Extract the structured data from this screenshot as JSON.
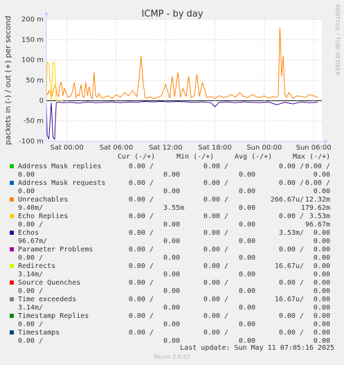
{
  "chart_data": {
    "type": "line",
    "title": "ICMP - by day",
    "ylabel": "packets in (-) / out (+) per second",
    "ylim": [
      -100,
      200
    ],
    "yticks": [
      "200 m",
      "150 m",
      "100 m",
      "50 m",
      "0",
      "-50 m",
      "-100 m"
    ],
    "ytick_values": [
      200,
      150,
      100,
      50,
      0,
      -50,
      -100
    ],
    "xlim": [
      0,
      33.5
    ],
    "xticks": [
      "Sat 00:00",
      "Sat 06:00",
      "Sat 12:00",
      "Sat 18:00",
      "Sun 00:00",
      "Sun 06:00"
    ],
    "xtick_values": [
      2.5,
      8.5,
      14.5,
      20.5,
      26.5,
      32.5
    ],
    "grid": true,
    "series": [
      {
        "name": "Unreachables",
        "color": "#ff8000",
        "x": [
          0,
          0.15,
          0.3,
          0.5,
          0.7,
          0.9,
          1.1,
          1.3,
          1.5,
          1.6,
          1.8,
          2.0,
          2.2,
          2.4,
          2.6,
          2.8,
          3.0,
          3.2,
          3.4,
          3.6,
          3.8,
          4.0,
          4.2,
          4.4,
          4.6,
          4.8,
          5.0,
          5.2,
          5.4,
          5.6,
          5.8,
          6.0,
          6.2,
          6.4,
          6.6,
          6.8,
          7.0,
          7.5,
          8.0,
          8.5,
          9.0,
          9.5,
          10.0,
          10.5,
          11.0,
          11.3,
          11.5,
          11.8,
          12.0,
          12.3,
          12.6,
          13.0,
          13.5,
          14.0,
          14.5,
          15.0,
          15.3,
          15.6,
          16.0,
          16.3,
          16.6,
          17.0,
          17.3,
          17.6,
          18.0,
          18.3,
          18.6,
          19.0,
          19.5,
          20.0,
          20.5,
          21.0,
          21.5,
          22.0,
          22.5,
          23.0,
          23.5,
          24.0,
          24.5,
          25.0,
          25.5,
          26.0,
          26.5,
          27.0,
          27.5,
          28.0,
          28.2,
          28.4,
          28.6,
          28.8,
          29.0,
          29.2,
          29.5,
          30.0,
          30.5,
          31.0,
          31.5,
          32.0,
          32.5,
          33.0
        ],
        "values": [
          20,
          15,
          25,
          18,
          12,
          30,
          40,
          15,
          10,
          35,
          45,
          12,
          30,
          20,
          8,
          10,
          12,
          25,
          45,
          8,
          15,
          12,
          40,
          10,
          8,
          45,
          12,
          35,
          10,
          5,
          70,
          12,
          8,
          18,
          10,
          6,
          8,
          12,
          6,
          15,
          8,
          20,
          12,
          25,
          10,
          60,
          110,
          40,
          8,
          6,
          10,
          5,
          8,
          12,
          40,
          6,
          60,
          10,
          70,
          8,
          30,
          10,
          60,
          8,
          12,
          65,
          10,
          45,
          8,
          10,
          6,
          12,
          8,
          10,
          15,
          8,
          20,
          10,
          8,
          15,
          10,
          8,
          12,
          6,
          10,
          8,
          12,
          180,
          60,
          110,
          15,
          8,
          20,
          6,
          12,
          10,
          8,
          15,
          12,
          8
        ]
      },
      {
        "name": "Echo Replies",
        "color": "#ffcc00",
        "x": [
          0,
          0.1,
          0.3,
          0.6,
          0.8,
          1.0,
          1.2,
          1.4,
          1.6,
          2.0
        ],
        "values": [
          0,
          95,
          90,
          0,
          95,
          92,
          0,
          0,
          0,
          0
        ]
      },
      {
        "name": "Echos",
        "color": "#330099",
        "x": [
          0,
          0.1,
          0.3,
          0.6,
          0.8,
          1.0,
          1.2,
          1.4,
          2.0,
          3.0,
          4.0,
          5.0,
          6.0,
          7.0,
          8.0,
          9.0,
          10.0,
          11.0,
          12.0,
          13.0,
          14.0,
          15.0,
          16.0,
          17.0,
          18.0,
          19.0,
          20.0,
          20.5,
          21.0,
          22.0,
          23.0,
          24.0,
          25.0,
          26.0,
          27.0,
          28.0,
          29.0,
          30.0,
          31.0,
          32.0,
          33.0
        ],
        "values": [
          0,
          -85,
          -95,
          -5,
          -90,
          -95,
          -5,
          -3,
          -5,
          -4,
          -6,
          -3,
          -5,
          -4,
          -3,
          -5,
          -3,
          -4,
          -2,
          -3,
          -2,
          -3,
          -2,
          -3,
          -4,
          -3,
          -5,
          -15,
          -4,
          -3,
          -5,
          -3,
          -4,
          -5,
          -3,
          -10,
          -4,
          -8,
          -3,
          -5,
          -4
        ]
      }
    ]
  },
  "side_label": "RRDTOOL / TOBI OETIKER",
  "legend": {
    "headers": {
      "cur": "Cur (-/+)",
      "min": "Min (-/+)",
      "avg": "Avg (-/+)",
      "max": "Max (-/+)"
    },
    "rows": [
      {
        "name": "Address Mask replies",
        "color": "#00cc00",
        "cur": "0.00 /",
        "cur2": "0.00",
        "min": "0.00 /",
        "min2": "0.00",
        "avg": "0.00 /",
        "avg2": "0.00",
        "max": "0.00 /",
        "max2": "0.00"
      },
      {
        "name": "Address Mask requests",
        "color": "#0066b3",
        "cur": "0.00 /",
        "cur2": "0.00",
        "min": "0.00 /",
        "min2": "0.00",
        "avg": "0.00 /",
        "avg2": "0.00",
        "max": "0.00 /",
        "max2": "0.00"
      },
      {
        "name": "Unreachables",
        "color": "#ff8000",
        "cur": "0.00 /",
        "cur2": "3.55m",
        "min": "0.00 /",
        "min2": "0.00",
        "avg": "266.67u/",
        "avg2": "9.40m/",
        "max": "12.32m",
        "max2": "179.62m"
      },
      {
        "name": "Echo Replies",
        "color": "#ffcc00",
        "cur": "0.00 /",
        "cur2": "0.00",
        "min": "0.00 /",
        "min2": "0.00",
        "avg": "0.00 /",
        "avg2": "0.00 /",
        "max": "3.53m",
        "max2": "96.67m"
      },
      {
        "name": "Echos",
        "color": "#330099",
        "cur": "0.00 /",
        "cur2": "0.00",
        "min": "0.00 /",
        "min2": "0.00",
        "avg": "3.53m/",
        "avg2": "96.67m/",
        "max": "0.00",
        "max2": "0.00"
      },
      {
        "name": "Parameter Problems",
        "color": "#990099",
        "cur": "0.00 /",
        "cur2": "0.00",
        "min": "0.00 /",
        "min2": "0.00",
        "avg": "0.00 /",
        "avg2": "0.00 /",
        "max": "0.00",
        "max2": "0.00"
      },
      {
        "name": "Redirects",
        "color": "#ccff00",
        "cur": "0.00 /",
        "cur2": "0.00",
        "min": "0.00 /",
        "min2": "0.00",
        "avg": "16.67u/",
        "avg2": "3.14m/",
        "max": "0.00",
        "max2": "0.00"
      },
      {
        "name": "Source Quenches",
        "color": "#ff0000",
        "cur": "0.00 /",
        "cur2": "0.00",
        "min": "0.00 /",
        "min2": "0.00",
        "avg": "0.00 /",
        "avg2": "0.00 /",
        "max": "0.00",
        "max2": "0.00"
      },
      {
        "name": "Time exceededs",
        "color": "#808080",
        "cur": "0.00 /",
        "cur2": "0.00",
        "min": "0.00 /",
        "min2": "0.00",
        "avg": "16.67u/",
        "avg2": "3.14m/",
        "max": "0.00",
        "max2": "0.00"
      },
      {
        "name": "Timestamp Replies",
        "color": "#008f00",
        "cur": "0.00 /",
        "cur2": "0.00",
        "min": "0.00 /",
        "min2": "0.00",
        "avg": "0.00 /",
        "avg2": "0.00 /",
        "max": "0.00",
        "max2": "0.00"
      },
      {
        "name": "Timestamps",
        "color": "#00487d",
        "cur": "0.00 /",
        "cur2": "0.00",
        "min": "0.00 /",
        "min2": "0.00",
        "avg": "0.00 /",
        "avg2": "0.00 /",
        "max": "0.00",
        "max2": "0.00"
      }
    ]
  },
  "footer": {
    "last_update": "Last update: Sun May 11 07:05:16 2025",
    "version": "Munin 2.0.57"
  }
}
